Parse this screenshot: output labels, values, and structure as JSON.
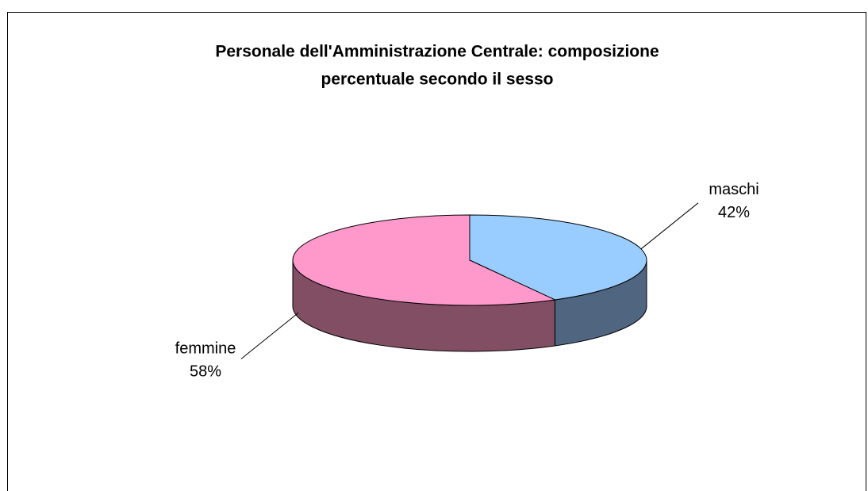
{
  "chart_data": {
    "type": "pie3d",
    "title": [
      "Personale dell'Amministrazione Centrale: composizione",
      "percentuale secondo il sesso"
    ],
    "categories": [
      "maschi",
      "femmine"
    ],
    "values": [
      42,
      58
    ],
    "value_labels": [
      "42%",
      "58%"
    ],
    "colors": [
      "#99ccff",
      "#ff99cc"
    ],
    "side_colors": [
      "#4f6580",
      "#824e64"
    ]
  }
}
